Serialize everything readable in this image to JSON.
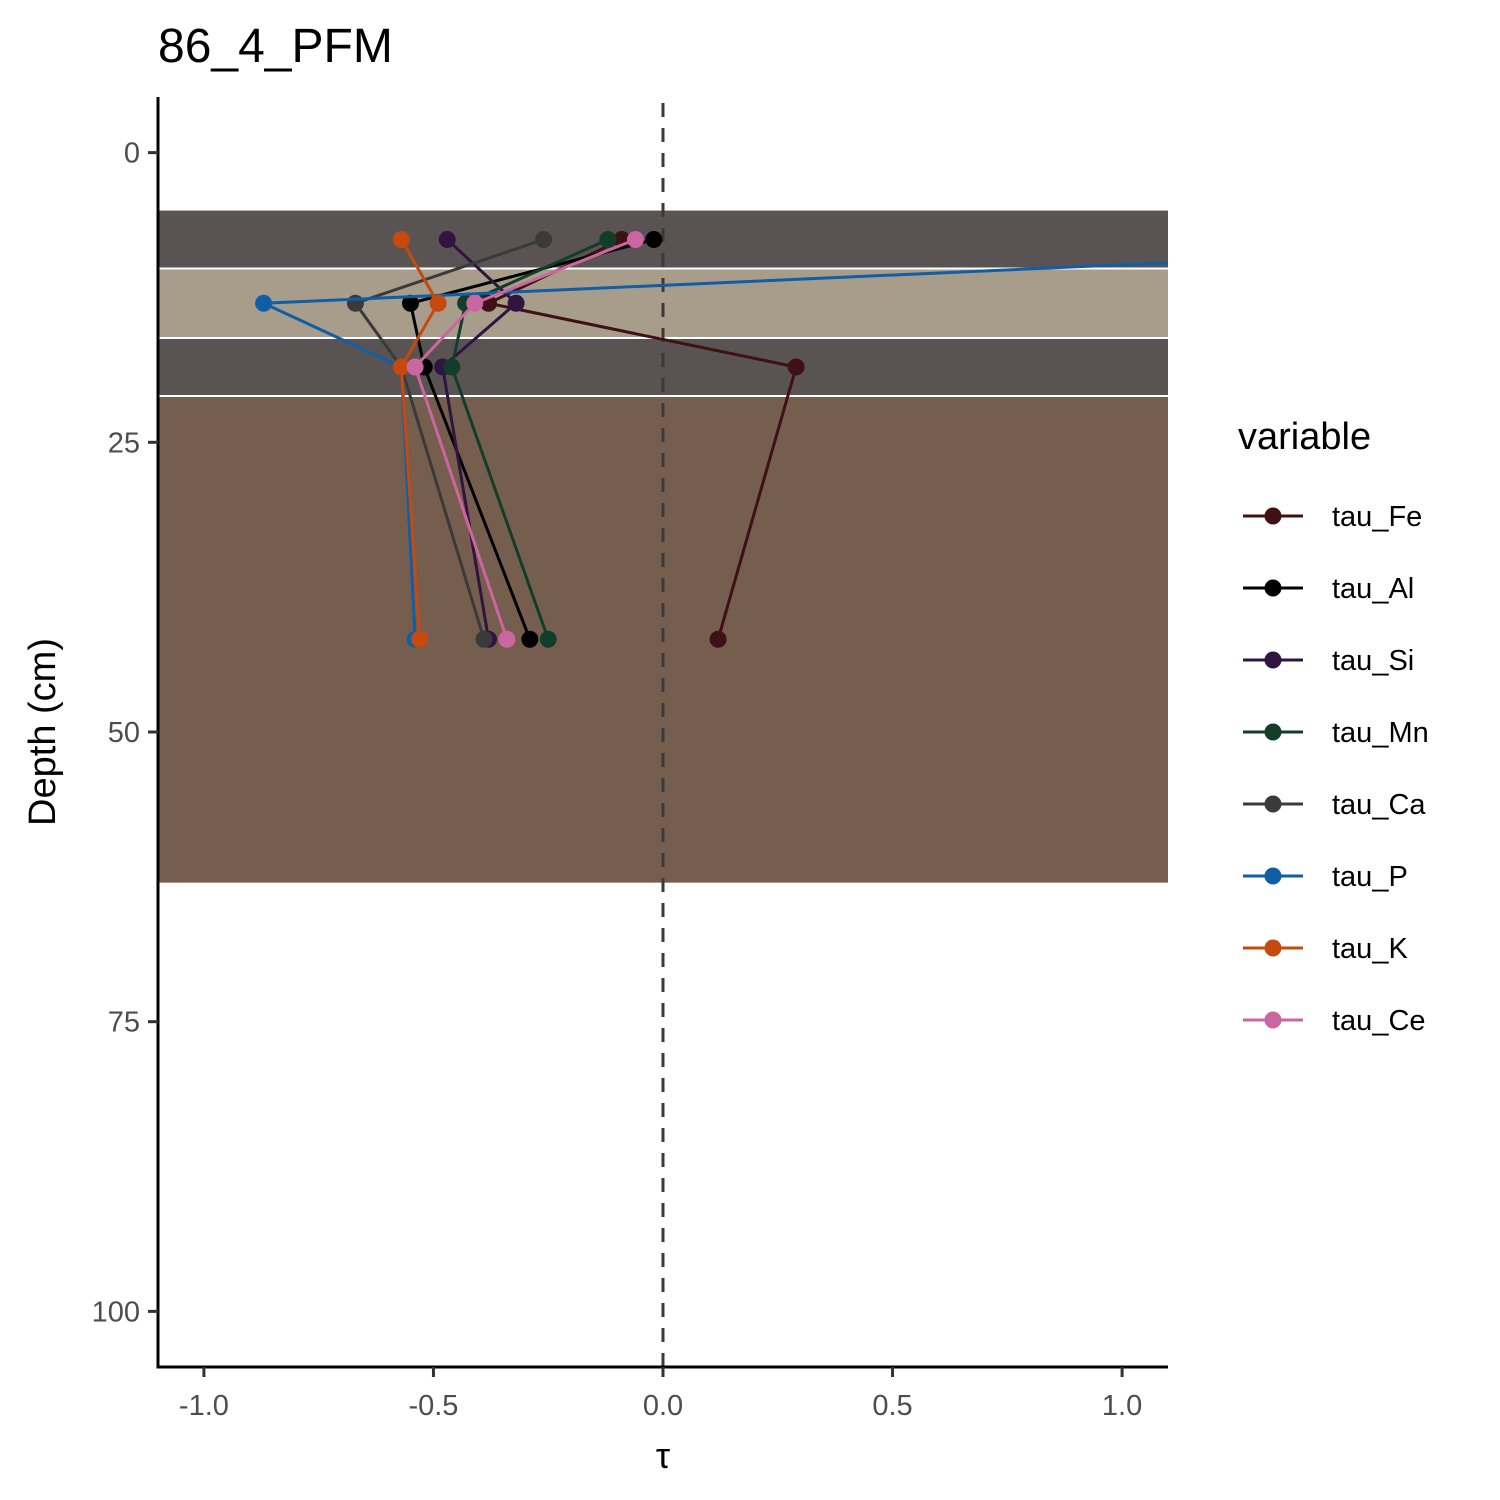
{
  "chart_data": {
    "type": "line",
    "title": "86_4_PFM",
    "xlabel": "τ",
    "ylabel": "Depth (cm)",
    "xlim": [
      -1.1,
      1.1
    ],
    "ylim": [
      -4.8,
      104.8
    ],
    "y_reversed": true,
    "x_ticks": [
      -1.0,
      -0.5,
      0.0,
      0.5,
      1.0
    ],
    "x_tick_labels": [
      "-1.0",
      "-0.5",
      "0.0",
      "0.5",
      "1.0"
    ],
    "y_ticks": [
      0,
      25,
      50,
      75,
      100
    ],
    "y_tick_labels": [
      "0",
      "25",
      "50",
      "75",
      "100"
    ],
    "reference_line": {
      "x": 0,
      "style": "dashed",
      "color": "#3a3a3a"
    },
    "horizons": [
      {
        "top": 5,
        "bottom": 10,
        "color": "#595453"
      },
      {
        "top": 10,
        "bottom": 16,
        "color": "#a89d8b"
      },
      {
        "top": 16,
        "bottom": 21,
        "color": "#595453"
      },
      {
        "top": 21,
        "bottom": 63,
        "color": "#765e4f"
      }
    ],
    "legend_title": "variable",
    "legend_position": "right",
    "grid": false,
    "series": [
      {
        "name": "tau_Fe",
        "color": "#3f1015",
        "x": [
          -0.09,
          -0.38,
          0.29,
          0.12
        ],
        "y": [
          7.5,
          13,
          18.5,
          42
        ]
      },
      {
        "name": "tau_Al",
        "color": "#000000",
        "x": [
          -0.02,
          -0.55,
          -0.52,
          -0.29
        ],
        "y": [
          7.5,
          13,
          18.5,
          42
        ]
      },
      {
        "name": "tau_Si",
        "color": "#2f1540",
        "x": [
          -0.47,
          -0.32,
          -0.48,
          -0.38
        ],
        "y": [
          7.5,
          13,
          18.5,
          42
        ]
      },
      {
        "name": "tau_Mn",
        "color": "#123d2a",
        "x": [
          -0.12,
          -0.43,
          -0.46,
          -0.25
        ],
        "y": [
          7.5,
          13,
          18.5,
          42
        ]
      },
      {
        "name": "tau_Ca",
        "color": "#3a3a3a",
        "x": [
          -0.26,
          -0.67,
          -0.57,
          -0.39
        ],
        "y": [
          7.5,
          13,
          18.5,
          42
        ]
      },
      {
        "name": "tau_P",
        "color": "#0f5ea6",
        "x": [
          1.1,
          -0.87,
          -0.57,
          -0.54
        ],
        "y": [
          9.5,
          13,
          18.5,
          42
        ]
      },
      {
        "name": "tau_K",
        "color": "#c64a0e",
        "x": [
          -0.57,
          -0.49,
          -0.57,
          -0.53
        ],
        "y": [
          7.5,
          13,
          18.5,
          42
        ]
      },
      {
        "name": "tau_Ce",
        "color": "#cc66a0",
        "x": [
          -0.06,
          -0.41,
          -0.54,
          -0.34
        ],
        "y": [
          7.5,
          13,
          18.5,
          42
        ]
      }
    ]
  }
}
